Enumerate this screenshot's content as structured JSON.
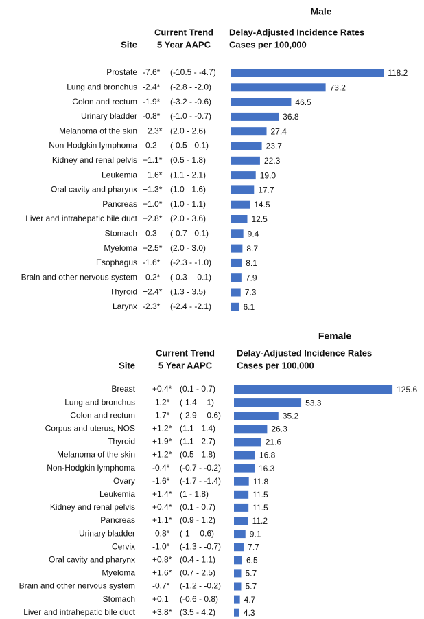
{
  "chart_data": [
    {
      "type": "bar",
      "title": "Male",
      "site_header": "Site",
      "trend_header": [
        "Current Trend",
        "5 Year AAPC"
      ],
      "rate_header": [
        "Delay-Adjusted Incidence Rates",
        "Cases per 100,000"
      ],
      "color": "#4472c4",
      "categories": [
        "Prostate",
        "Lung and bronchus",
        "Colon and rectum",
        "Urinary bladder",
        "Melanoma of the skin",
        "Non-Hodgkin lymphoma",
        "Kidney and renal pelvis",
        "Leukemia",
        "Oral cavity and pharynx",
        "Pancreas",
        "Liver and intrahepatic bile duct",
        "Stomach",
        "Myeloma",
        "Esophagus",
        "Brain and other nervous system",
        "Thyroid",
        "Larynx"
      ],
      "aapc": [
        "-7.6*",
        "-2.4*",
        "-1.9*",
        "-0.8*",
        "+2.3*",
        "-0.2",
        "+1.1*",
        "+1.6*",
        "+1.3*",
        "+1.0*",
        "+2.8*",
        "-0.3",
        "+2.5*",
        "-1.6*",
        "-0.2*",
        "+2.4*",
        "-2.3*"
      ],
      "ci": [
        "(-10.5 - -4.7)",
        "(-2.8 - -2.0)",
        "(-3.2 - -0.6)",
        "(-1.0 - -0.7)",
        "(2.0 - 2.6)",
        "(-0.5 - 0.1)",
        "(0.5 - 1.8)",
        "(1.1 - 2.1)",
        "(1.0 - 1.6)",
        "(1.0 - 1.1)",
        "(2.0 - 3.6)",
        "(-0.7 - 0.1)",
        "(2.0 - 3.0)",
        "(-2.3 - -1.0)",
        "(-0.3 - -0.1)",
        "(1.3 - 3.5)",
        "(-2.4 - -2.1)"
      ],
      "values": [
        118.2,
        73.2,
        46.5,
        36.8,
        27.4,
        23.7,
        22.3,
        19.0,
        17.7,
        14.5,
        12.5,
        9.4,
        8.7,
        8.1,
        7.9,
        7.3,
        6.1
      ],
      "value_labels": [
        "118.2",
        "73.2",
        "46.5",
        "36.8",
        "27.4",
        "23.7",
        "22.3",
        "19.0",
        "17.7",
        "14.5",
        "12.5",
        "9.4",
        "8.7",
        "8.1",
        "7.9",
        "7.3",
        "6.1"
      ]
    },
    {
      "type": "bar",
      "title": "Female",
      "site_header": "Site",
      "trend_header": [
        "Current Trend",
        "5 Year AAPC"
      ],
      "rate_header": [
        "Delay-Adjusted Incidence Rates",
        "Cases per 100,000"
      ],
      "color": "#4472c4",
      "categories": [
        "Breast",
        "Lung and bronchus",
        "Colon and rectum",
        "Corpus and uterus, NOS",
        "Thyroid",
        "Melanoma of the skin",
        "Non-Hodgkin lymphoma",
        "Ovary",
        "Leukemia",
        "Kidney and renal pelvis",
        "Pancreas",
        "Urinary bladder",
        "Cervix",
        "Oral cavity and pharynx",
        "Myeloma",
        "Brain and other nervous system",
        "Stomach",
        "Liver and intrahepatic bile duct"
      ],
      "aapc": [
        "+0.4*",
        "-1.2*",
        "-1.7*",
        "+1.2*",
        "+1.9*",
        "+1.2*",
        "-0.4*",
        "-1.6*",
        "+1.4*",
        "+0.4*",
        "+1.1*",
        "-0.8*",
        "-1.0*",
        "+0.8*",
        "+1.6*",
        "-0.7*",
        "+0.1",
        "+3.8*"
      ],
      "ci": [
        "(0.1 - 0.7)",
        "(-1.4 - -1)",
        "(-2.9 - -0.6)",
        "(1.1 - 1.4)",
        "(1.1 - 2.7)",
        "(0.5 - 1.8)",
        "(-0.7 - -0.2)",
        "(-1.7 - -1.4)",
        "(1 - 1.8)",
        "(0.1 - 0.7)",
        "(0.9 - 1.2)",
        "(-1 - -0.6)",
        "(-1.3 - -0.7)",
        "(0.4 - 1.1)",
        "(0.7 - 2.5)",
        "(-1.2 - -0.2)",
        "(-0.6 - 0.8)",
        "(3.5 - 4.2)"
      ],
      "values": [
        125.6,
        53.3,
        35.2,
        26.3,
        21.6,
        16.8,
        16.3,
        11.8,
        11.5,
        11.5,
        11.2,
        9.1,
        7.7,
        6.5,
        5.7,
        5.7,
        4.7,
        4.3
      ],
      "value_labels": [
        "125.6",
        "53.3",
        "35.2",
        "26.3",
        "21.6",
        "16.8",
        "16.3",
        "11.8",
        "11.5",
        "11.5",
        "11.2",
        "9.1",
        "7.7",
        "6.5",
        "5.7",
        "5.7",
        "4.7",
        "4.3"
      ]
    }
  ]
}
